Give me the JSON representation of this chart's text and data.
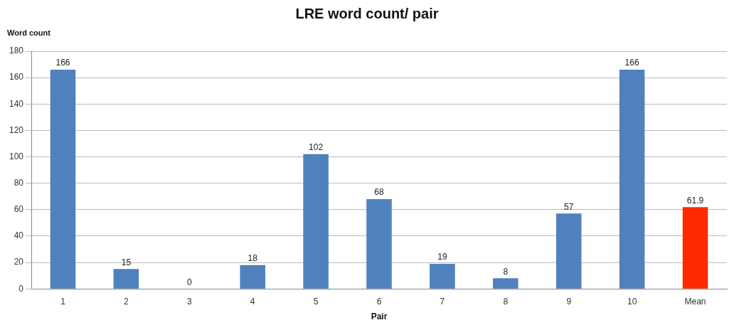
{
  "chart_data": {
    "type": "bar",
    "title": "LRE word count/ pair",
    "xlabel": "Pair",
    "ylabel": "Word count",
    "categories": [
      "1",
      "2",
      "3",
      "4",
      "5",
      "6",
      "7",
      "8",
      "9",
      "10",
      "Mean"
    ],
    "values": [
      166,
      15,
      0,
      18,
      102,
      68,
      19,
      8,
      57,
      166,
      61.9
    ],
    "colors": [
      "#4f81bd",
      "#4f81bd",
      "#4f81bd",
      "#4f81bd",
      "#4f81bd",
      "#4f81bd",
      "#4f81bd",
      "#4f81bd",
      "#4f81bd",
      "#4f81bd",
      "#ff2a00"
    ],
    "ylim": [
      0,
      180
    ],
    "yticks": [
      0,
      20,
      40,
      60,
      80,
      100,
      120,
      140,
      160,
      180
    ],
    "grid": "y",
    "legend": false,
    "data_labels": true
  }
}
